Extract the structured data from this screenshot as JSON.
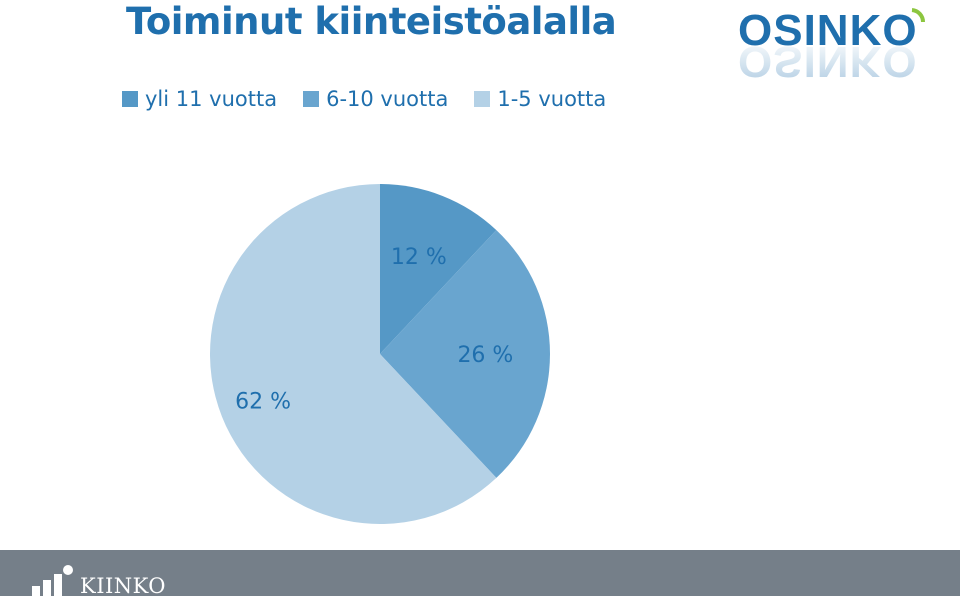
{
  "header": {
    "title": "Toiminut kiinteistöalalla",
    "logo_text": "OSINKO"
  },
  "chart_data": {
    "type": "pie",
    "title": "Toiminut kiinteistöalalla",
    "categories": [
      "yli 11 vuotta",
      "6-10 vuotta",
      "1-5 vuotta"
    ],
    "values": [
      12,
      26,
      62
    ],
    "labels": [
      "12 %",
      "26 %",
      "62 %"
    ],
    "colors": [
      "#5598c6",
      "#69a5cf",
      "#b4d1e6"
    ],
    "legend_position": "top",
    "label_color": "#1f6fad"
  },
  "footer": {
    "brand": "KIINKO",
    "background": "#757f89"
  }
}
